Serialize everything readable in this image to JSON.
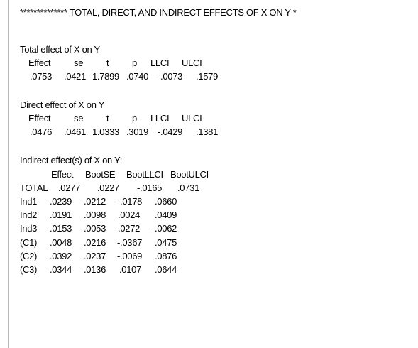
{
  "header": "************** TOTAL, DIRECT, AND INDIRECT EFFECTS OF X ON Y *",
  "total": {
    "title": "Total effect of X on Y",
    "columns": [
      "Effect",
      "se",
      "t",
      "p",
      "LLCI",
      "ULCI"
    ],
    "values": [
      ".0753",
      ".0421",
      "1.7899",
      ".0740",
      "-.0073",
      ".1579"
    ]
  },
  "direct": {
    "title": "Direct effect of X on Y",
    "columns": [
      "Effect",
      "se",
      "t",
      "p",
      "LLCI",
      "ULCI"
    ],
    "values": [
      ".0476",
      ".0461",
      "1.0333",
      ".3019",
      "-.0429",
      ".1381"
    ]
  },
  "indirect": {
    "title": "Indirect effect(s) of X on Y:",
    "columns": [
      "Effect",
      "BootSE",
      "BootLLCI",
      "BootULCI"
    ],
    "rows": [
      {
        "label": "TOTAL",
        "values": [
          ".0277",
          ".0227",
          "-.0165",
          ".0731"
        ]
      },
      {
        "label": "Ind1",
        "values": [
          ".0239",
          ".0212",
          "-.0178",
          ".0660"
        ]
      },
      {
        "label": "Ind2",
        "values": [
          ".0191",
          ".0098",
          ".0024",
          ".0409"
        ]
      },
      {
        "label": "Ind3",
        "values": [
          "-.0153",
          ".0053",
          "-.0272",
          "-.0062"
        ]
      },
      {
        "label": "(C1)",
        "values": [
          ".0048",
          ".0216",
          "-.0367",
          ".0475"
        ]
      },
      {
        "label": "(C2)",
        "values": [
          ".0392",
          ".0237",
          "-.0069",
          ".0876"
        ]
      },
      {
        "label": "(C3)",
        "values": [
          ".0344",
          ".0136",
          ".0107",
          ".0644"
        ]
      }
    ]
  }
}
